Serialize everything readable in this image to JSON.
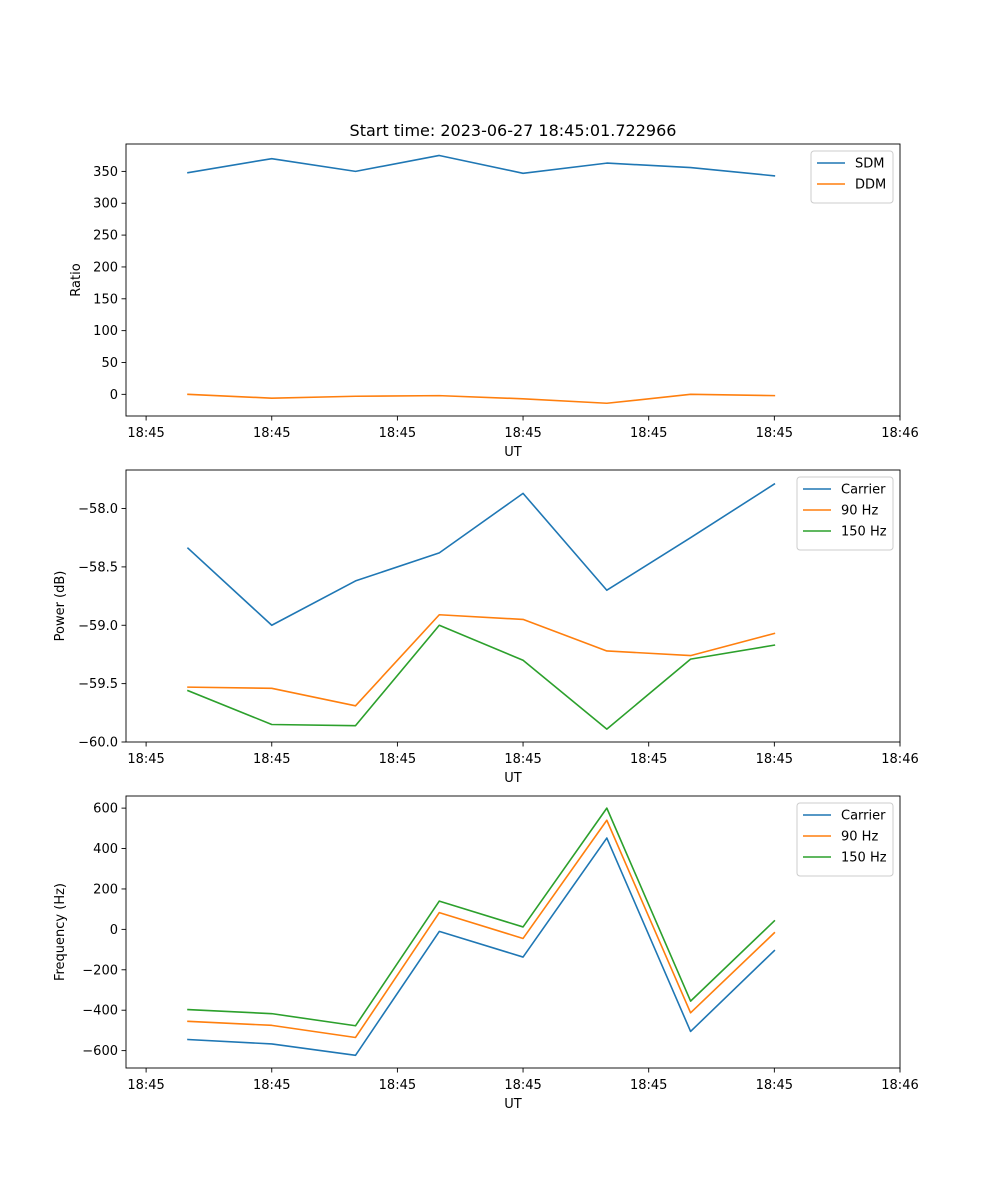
{
  "figure": {
    "title": "Start time: 2023-06-27 18:45:01.722966"
  },
  "chart_data": [
    {
      "type": "line",
      "xlabel": "UT",
      "ylabel": "Ratio",
      "x_seconds": [
        1.72,
        2.22,
        2.72,
        3.22,
        3.72,
        4.22,
        4.72,
        5.22
      ],
      "xlim_seconds": [
        1.35,
        5.97
      ],
      "x_tick_seconds": [
        1.47,
        2.22,
        2.97,
        3.72,
        4.47,
        5.22,
        5.97
      ],
      "x_tick_labels": [
        "18:45",
        "18:45",
        "18:45",
        "18:45",
        "18:45",
        "18:45",
        "18:46"
      ],
      "ylim": [
        -34,
        393
      ],
      "y_ticks": [
        0,
        50,
        100,
        150,
        200,
        250,
        300,
        350
      ],
      "y_tick_labels": [
        "0",
        "50",
        "100",
        "150",
        "200",
        "250",
        "300",
        "350"
      ],
      "legend_position": "top-right",
      "grid": false,
      "series": [
        {
          "name": "SDM",
          "color": "#1f77b4",
          "values": [
            348,
            370,
            350,
            375,
            347,
            363,
            356,
            343
          ]
        },
        {
          "name": "DDM",
          "color": "#ff7f0e",
          "values": [
            0,
            -6,
            -3,
            -2,
            -7,
            -14,
            0,
            -2
          ]
        }
      ]
    },
    {
      "type": "line",
      "xlabel": "UT",
      "ylabel": "Power (dB)",
      "x_seconds": [
        1.72,
        2.22,
        2.72,
        3.22,
        3.72,
        4.22,
        4.72,
        5.22
      ],
      "xlim_seconds": [
        1.35,
        5.97
      ],
      "x_tick_seconds": [
        1.47,
        2.22,
        2.97,
        3.72,
        4.47,
        5.22,
        5.97
      ],
      "x_tick_labels": [
        "18:45",
        "18:45",
        "18:45",
        "18:45",
        "18:45",
        "18:45",
        "18:46"
      ],
      "ylim": [
        -60.0,
        -57.67
      ],
      "y_ticks": [
        -60.0,
        -59.5,
        -59.0,
        -58.5,
        -58.0
      ],
      "y_tick_labels": [
        "−60.0",
        "−59.5",
        "−59.0",
        "−58.5",
        "−58.0"
      ],
      "legend_position": "top-right",
      "grid": false,
      "series": [
        {
          "name": "Carrier",
          "color": "#1f77b4",
          "values": [
            -58.34,
            -59.0,
            -58.62,
            -58.38,
            -57.87,
            -58.7,
            -58.25,
            -57.79
          ]
        },
        {
          "name": "90 Hz",
          "color": "#ff7f0e",
          "values": [
            -59.53,
            -59.54,
            -59.69,
            -58.91,
            -58.95,
            -59.22,
            -59.26,
            -59.07
          ]
        },
        {
          "name": "150 Hz",
          "color": "#2ca02c",
          "values": [
            -59.56,
            -59.85,
            -59.86,
            -59.0,
            -59.3,
            -59.89,
            -59.29,
            -59.17
          ]
        }
      ]
    },
    {
      "type": "line",
      "xlabel": "UT",
      "ylabel": "Frequency (Hz)",
      "x_seconds": [
        1.72,
        2.22,
        2.72,
        3.22,
        3.72,
        4.22,
        4.72,
        5.22
      ],
      "xlim_seconds": [
        1.35,
        5.97
      ],
      "x_tick_seconds": [
        1.47,
        2.22,
        2.97,
        3.72,
        4.47,
        5.22,
        5.97
      ],
      "x_tick_labels": [
        "18:45",
        "18:45",
        "18:45",
        "18:45",
        "18:45",
        "18:45",
        "18:46"
      ],
      "ylim": [
        -686,
        660
      ],
      "y_ticks": [
        -600,
        -400,
        -200,
        0,
        200,
        400,
        600
      ],
      "y_tick_labels": [
        "−600",
        "−400",
        "−200",
        "0",
        "200",
        "400",
        "600"
      ],
      "legend_position": "top-right",
      "grid": false,
      "series": [
        {
          "name": "Carrier",
          "color": "#1f77b4",
          "values": [
            -545,
            -567,
            -623,
            -10,
            -137,
            452,
            -505,
            -105
          ]
        },
        {
          "name": "90 Hz",
          "color": "#ff7f0e",
          "values": [
            -455,
            -475,
            -535,
            83,
            -45,
            540,
            -413,
            -17
          ]
        },
        {
          "name": "150 Hz",
          "color": "#2ca02c",
          "values": [
            -397,
            -417,
            -477,
            140,
            12,
            600,
            -355,
            42
          ]
        }
      ]
    }
  ]
}
